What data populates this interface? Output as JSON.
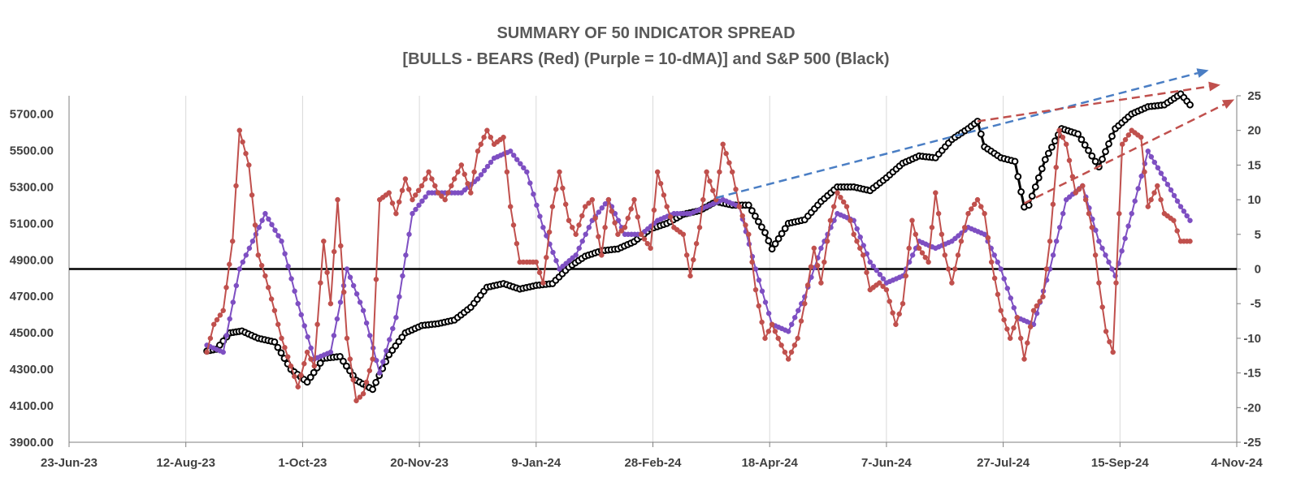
{
  "chart_data": {
    "type": "line",
    "title": "SUMMARY OF 50 INDICATOR SPREAD",
    "subtitle": "[BULLS - BEARS (Red) (Purple = 10-dMA)] and S&P 500 (Black)",
    "x_tick_labels": [
      "23-Jun-23",
      "12-Aug-23",
      "1-Oct-23",
      "20-Nov-23",
      "9-Jan-24",
      "28-Feb-24",
      "18-Apr-24",
      "7-Jun-24",
      "27-Jul-24",
      "15-Sep-24",
      "4-Nov-24"
    ],
    "x_range": [
      "2023-06-23",
      "2024-11-04"
    ],
    "y_left_tick_labels": [
      "3900.00",
      "4100.00",
      "4300.00",
      "4500.00",
      "4700.00",
      "4900.00",
      "5100.00",
      "5300.00",
      "5500.00",
      "5700.00"
    ],
    "y_left_range": [
      3900,
      5800
    ],
    "y_right_tick_labels": [
      "-25",
      "-20",
      "-15",
      "-10",
      "-5",
      "0",
      "5",
      "10",
      "15",
      "20",
      "25"
    ],
    "y_right_range": [
      -25,
      25
    ],
    "zero_line": 0,
    "series": [
      {
        "name": "S&P 500 (Black)",
        "axis": "left",
        "color": "#000000",
        "points": [
          [
            "2023-08-21",
            4400
          ],
          [
            "2023-08-25",
            4410
          ],
          [
            "2023-08-31",
            4500
          ],
          [
            "2023-09-05",
            4510
          ],
          [
            "2023-09-12",
            4470
          ],
          [
            "2023-09-19",
            4450
          ],
          [
            "2023-09-26",
            4300
          ],
          [
            "2023-10-03",
            4230
          ],
          [
            "2023-10-10",
            4360
          ],
          [
            "2023-10-17",
            4370
          ],
          [
            "2023-10-24",
            4240
          ],
          [
            "2023-10-31",
            4190
          ],
          [
            "2023-11-07",
            4380
          ],
          [
            "2023-11-14",
            4500
          ],
          [
            "2023-11-21",
            4540
          ],
          [
            "2023-11-28",
            4550
          ],
          [
            "2023-12-05",
            4570
          ],
          [
            "2023-12-12",
            4640
          ],
          [
            "2023-12-19",
            4750
          ],
          [
            "2023-12-26",
            4770
          ],
          [
            "2024-01-02",
            4740
          ],
          [
            "2024-01-09",
            4760
          ],
          [
            "2024-01-16",
            4770
          ],
          [
            "2024-01-23",
            4860
          ],
          [
            "2024-01-30",
            4920
          ],
          [
            "2024-02-06",
            4950
          ],
          [
            "2024-02-13",
            4960
          ],
          [
            "2024-02-20",
            5000
          ],
          [
            "2024-02-27",
            5070
          ],
          [
            "2024-03-05",
            5100
          ],
          [
            "2024-03-12",
            5150
          ],
          [
            "2024-03-19",
            5170
          ],
          [
            "2024-03-26",
            5220
          ],
          [
            "2024-04-02",
            5200
          ],
          [
            "2024-04-09",
            5200
          ],
          [
            "2024-04-16",
            5050
          ],
          [
            "2024-04-19",
            4960
          ],
          [
            "2024-04-26",
            5100
          ],
          [
            "2024-05-03",
            5120
          ],
          [
            "2024-05-10",
            5220
          ],
          [
            "2024-05-17",
            5300
          ],
          [
            "2024-05-24",
            5300
          ],
          [
            "2024-05-31",
            5280
          ],
          [
            "2024-06-07",
            5350
          ],
          [
            "2024-06-14",
            5430
          ],
          [
            "2024-06-21",
            5470
          ],
          [
            "2024-06-28",
            5460
          ],
          [
            "2024-07-05",
            5560
          ],
          [
            "2024-07-12",
            5620
          ],
          [
            "2024-07-16",
            5660
          ],
          [
            "2024-07-19",
            5520
          ],
          [
            "2024-07-26",
            5460
          ],
          [
            "2024-08-01",
            5440
          ],
          [
            "2024-08-05",
            5190
          ],
          [
            "2024-08-07",
            5200
          ],
          [
            "2024-08-14",
            5450
          ],
          [
            "2024-08-21",
            5620
          ],
          [
            "2024-08-28",
            5590
          ],
          [
            "2024-09-06",
            5410
          ],
          [
            "2024-09-13",
            5620
          ],
          [
            "2024-09-20",
            5700
          ],
          [
            "2024-09-27",
            5740
          ],
          [
            "2024-10-04",
            5750
          ],
          [
            "2024-10-11",
            5810
          ],
          [
            "2024-10-15",
            5750
          ]
        ]
      },
      {
        "name": "BULLS - BEARS (Red)",
        "axis": "right",
        "color": "#C0504D",
        "points": [
          [
            "2023-08-21",
            -12
          ],
          [
            "2023-08-24",
            -8
          ],
          [
            "2023-08-28",
            -6
          ],
          [
            "2023-09-01",
            4
          ],
          [
            "2023-09-04",
            20
          ],
          [
            "2023-09-08",
            15
          ],
          [
            "2023-09-12",
            2
          ],
          [
            "2023-09-15",
            -1
          ],
          [
            "2023-09-19",
            -6
          ],
          [
            "2023-09-22",
            -10
          ],
          [
            "2023-09-26",
            -14
          ],
          [
            "2023-09-29",
            -17
          ],
          [
            "2023-10-03",
            -12
          ],
          [
            "2023-10-06",
            -14
          ],
          [
            "2023-10-10",
            4
          ],
          [
            "2023-10-13",
            -5
          ],
          [
            "2023-10-16",
            10
          ],
          [
            "2023-10-20",
            -10
          ],
          [
            "2023-10-24",
            -19
          ],
          [
            "2023-10-27",
            -18
          ],
          [
            "2023-10-31",
            -13
          ],
          [
            "2023-11-03",
            10
          ],
          [
            "2023-11-07",
            11
          ],
          [
            "2023-11-10",
            8
          ],
          [
            "2023-11-14",
            13
          ],
          [
            "2023-11-17",
            10
          ],
          [
            "2023-11-21",
            12
          ],
          [
            "2023-11-24",
            14
          ],
          [
            "2023-11-28",
            11
          ],
          [
            "2023-12-01",
            10
          ],
          [
            "2023-12-05",
            13
          ],
          [
            "2023-12-08",
            15
          ],
          [
            "2023-12-12",
            11
          ],
          [
            "2023-12-15",
            17
          ],
          [
            "2023-12-19",
            20
          ],
          [
            "2023-12-22",
            18
          ],
          [
            "2023-12-26",
            19
          ],
          [
            "2023-12-29",
            9
          ],
          [
            "2024-01-02",
            1
          ],
          [
            "2024-01-05",
            1
          ],
          [
            "2024-01-09",
            1
          ],
          [
            "2024-01-12",
            -2
          ],
          [
            "2024-01-16",
            9
          ],
          [
            "2024-01-19",
            14
          ],
          [
            "2024-01-23",
            7
          ],
          [
            "2024-01-26",
            5
          ],
          [
            "2024-01-30",
            9
          ],
          [
            "2024-02-02",
            10
          ],
          [
            "2024-02-06",
            2
          ],
          [
            "2024-02-09",
            10
          ],
          [
            "2024-02-13",
            5
          ],
          [
            "2024-02-16",
            6
          ],
          [
            "2024-02-20",
            10
          ],
          [
            "2024-02-23",
            5
          ],
          [
            "2024-02-27",
            3
          ],
          [
            "2024-03-01",
            14
          ],
          [
            "2024-03-05",
            9
          ],
          [
            "2024-03-08",
            6
          ],
          [
            "2024-03-12",
            5
          ],
          [
            "2024-03-15",
            -1
          ],
          [
            "2024-03-19",
            6
          ],
          [
            "2024-03-22",
            14
          ],
          [
            "2024-03-26",
            10
          ],
          [
            "2024-03-29",
            18
          ],
          [
            "2024-04-02",
            14
          ],
          [
            "2024-04-05",
            9
          ],
          [
            "2024-04-09",
            5
          ],
          [
            "2024-04-12",
            -3
          ],
          [
            "2024-04-16",
            -10
          ],
          [
            "2024-04-19",
            -8
          ],
          [
            "2024-04-23",
            -11
          ],
          [
            "2024-04-26",
            -13
          ],
          [
            "2024-04-30",
            -10
          ],
          [
            "2024-05-03",
            -5
          ],
          [
            "2024-05-07",
            3
          ],
          [
            "2024-05-10",
            -2
          ],
          [
            "2024-05-14",
            7
          ],
          [
            "2024-05-17",
            11
          ],
          [
            "2024-05-21",
            9
          ],
          [
            "2024-05-24",
            5
          ],
          [
            "2024-05-28",
            2
          ],
          [
            "2024-05-31",
            -3
          ],
          [
            "2024-06-04",
            -2
          ],
          [
            "2024-06-07",
            -3
          ],
          [
            "2024-06-11",
            -8
          ],
          [
            "2024-06-14",
            -5
          ],
          [
            "2024-06-18",
            7
          ],
          [
            "2024-06-21",
            3
          ],
          [
            "2024-06-25",
            1
          ],
          [
            "2024-06-28",
            11
          ],
          [
            "2024-07-02",
            2
          ],
          [
            "2024-07-05",
            -2
          ],
          [
            "2024-07-09",
            4
          ],
          [
            "2024-07-12",
            8
          ],
          [
            "2024-07-16",
            10
          ],
          [
            "2024-07-19",
            8
          ],
          [
            "2024-07-22",
            1
          ],
          [
            "2024-07-26",
            -6
          ],
          [
            "2024-07-30",
            -10
          ],
          [
            "2024-08-02",
            -7
          ],
          [
            "2024-08-05",
            -13
          ],
          [
            "2024-08-09",
            -6
          ],
          [
            "2024-08-13",
            -4
          ],
          [
            "2024-08-16",
            4
          ],
          [
            "2024-08-20",
            20
          ],
          [
            "2024-08-23",
            18
          ],
          [
            "2024-08-27",
            11
          ],
          [
            "2024-08-30",
            12
          ],
          [
            "2024-09-03",
            6
          ],
          [
            "2024-09-06",
            -2
          ],
          [
            "2024-09-09",
            -9
          ],
          [
            "2024-09-12",
            -12
          ],
          [
            "2024-09-16",
            18
          ],
          [
            "2024-09-20",
            20
          ],
          [
            "2024-09-24",
            19
          ],
          [
            "2024-09-27",
            9
          ],
          [
            "2024-10-01",
            12
          ],
          [
            "2024-10-04",
            8
          ],
          [
            "2024-10-08",
            7
          ],
          [
            "2024-10-11",
            4
          ],
          [
            "2024-10-15",
            4
          ]
        ]
      },
      {
        "name": "10-dMA (Purple)",
        "axis": "right",
        "color": "#7E4FC2",
        "points": [
          [
            "2023-08-21",
            -11
          ],
          [
            "2023-08-28",
            -12
          ],
          [
            "2023-09-04",
            0
          ],
          [
            "2023-09-11",
            5
          ],
          [
            "2023-09-15",
            8
          ],
          [
            "2023-09-22",
            4
          ],
          [
            "2023-09-29",
            -5
          ],
          [
            "2023-10-06",
            -13
          ],
          [
            "2023-10-13",
            -12
          ],
          [
            "2023-10-20",
            0
          ],
          [
            "2023-10-27",
            -6
          ],
          [
            "2023-11-03",
            -15
          ],
          [
            "2023-11-10",
            -7
          ],
          [
            "2023-11-17",
            8
          ],
          [
            "2023-11-24",
            11
          ],
          [
            "2023-12-01",
            11
          ],
          [
            "2023-12-08",
            11
          ],
          [
            "2023-12-15",
            13
          ],
          [
            "2023-12-22",
            16
          ],
          [
            "2023-12-29",
            17
          ],
          [
            "2024-01-05",
            14
          ],
          [
            "2024-01-12",
            6
          ],
          [
            "2024-01-19",
            0
          ],
          [
            "2024-01-26",
            2
          ],
          [
            "2024-02-02",
            7
          ],
          [
            "2024-02-09",
            10
          ],
          [
            "2024-02-16",
            5
          ],
          [
            "2024-02-23",
            5
          ],
          [
            "2024-03-01",
            7
          ],
          [
            "2024-03-08",
            8
          ],
          [
            "2024-03-15",
            8
          ],
          [
            "2024-03-22",
            9
          ],
          [
            "2024-03-29",
            10
          ],
          [
            "2024-04-05",
            9
          ],
          [
            "2024-04-12",
            0
          ],
          [
            "2024-04-19",
            -8
          ],
          [
            "2024-04-26",
            -9
          ],
          [
            "2024-05-03",
            -4
          ],
          [
            "2024-05-10",
            3
          ],
          [
            "2024-05-17",
            8
          ],
          [
            "2024-05-24",
            7
          ],
          [
            "2024-05-31",
            1
          ],
          [
            "2024-06-07",
            -2
          ],
          [
            "2024-06-14",
            -1
          ],
          [
            "2024-06-21",
            4
          ],
          [
            "2024-06-28",
            3
          ],
          [
            "2024-07-05",
            4
          ],
          [
            "2024-07-12",
            6
          ],
          [
            "2024-07-19",
            5
          ],
          [
            "2024-07-26",
            0
          ],
          [
            "2024-08-02",
            -7
          ],
          [
            "2024-08-09",
            -8
          ],
          [
            "2024-08-16",
            0
          ],
          [
            "2024-08-23",
            10
          ],
          [
            "2024-08-30",
            12
          ],
          [
            "2024-09-06",
            4
          ],
          [
            "2024-09-13",
            -1
          ],
          [
            "2024-09-20",
            8
          ],
          [
            "2024-09-27",
            17
          ],
          [
            "2024-10-04",
            13
          ],
          [
            "2024-10-11",
            9
          ],
          [
            "2024-10-15",
            7
          ]
        ]
      }
    ],
    "annotations": [
      {
        "type": "trend-arrow",
        "color": "#4A7EC4",
        "from": [
          "2024-03-26",
          5240
        ],
        "to": [
          "2024-10-23",
          5940
        ]
      },
      {
        "type": "trend-arrow",
        "color": "#C0504D",
        "from": [
          "2024-07-16",
          5660
        ],
        "to": [
          "2024-10-28",
          5860
        ]
      },
      {
        "type": "trend-arrow",
        "color": "#C0504D",
        "from": [
          "2024-08-05",
          5210
        ],
        "to": [
          "2024-11-03",
          5780
        ]
      }
    ]
  }
}
